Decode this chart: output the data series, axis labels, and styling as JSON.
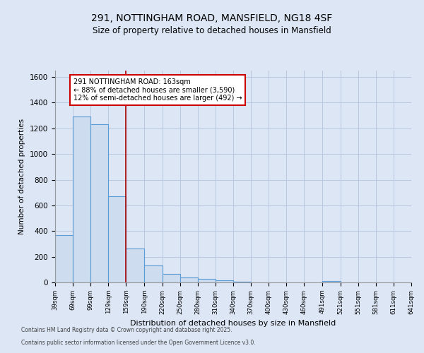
{
  "title_line1": "291, NOTTINGHAM ROAD, MANSFIELD, NG18 4SF",
  "title_line2": "Size of property relative to detached houses in Mansfield",
  "xlabel": "Distribution of detached houses by size in Mansfield",
  "ylabel": "Number of detached properties",
  "annotation_line1": "291 NOTTINGHAM ROAD: 163sqm",
  "annotation_line2": "← 88% of detached houses are smaller (3,590)",
  "annotation_line3": "12% of semi-detached houses are larger (492) →",
  "bar_left_edges": [
    39,
    69,
    99,
    129,
    159,
    190,
    220,
    250,
    280,
    310,
    340,
    370,
    400,
    430,
    460,
    491,
    521,
    551,
    581,
    611
  ],
  "bar_widths": [
    30,
    30,
    30,
    30,
    31,
    30,
    30,
    30,
    30,
    30,
    30,
    30,
    30,
    30,
    31,
    30,
    30,
    30,
    30,
    30
  ],
  "bar_heights": [
    370,
    1290,
    1230,
    670,
    265,
    130,
    65,
    40,
    25,
    15,
    5,
    0,
    0,
    0,
    0,
    10,
    0,
    0,
    0,
    0
  ],
  "bar_color": "#cddcee",
  "bar_edge_color": "#5b9bd5",
  "vline_color": "#aa0000",
  "vline_x": 159,
  "ylim": [
    0,
    1650
  ],
  "yticks": [
    0,
    200,
    400,
    600,
    800,
    1000,
    1200,
    1400,
    1600
  ],
  "xtick_labels": [
    "39sqm",
    "69sqm",
    "99sqm",
    "129sqm",
    "159sqm",
    "190sqm",
    "220sqm",
    "250sqm",
    "280sqm",
    "310sqm",
    "340sqm",
    "370sqm",
    "400sqm",
    "430sqm",
    "460sqm",
    "491sqm",
    "521sqm",
    "551sqm",
    "581sqm",
    "611sqm",
    "641sqm"
  ],
  "background_color": "#dce6f5",
  "plot_bg_color": "#dce6f5",
  "grid_color": "#b8c8e0",
  "annotation_bg": "#ffffff",
  "annotation_edge": "#cc0000",
  "footer_line1": "Contains HM Land Registry data © Crown copyright and database right 2025.",
  "footer_line2": "Contains public sector information licensed under the Open Government Licence v3.0."
}
